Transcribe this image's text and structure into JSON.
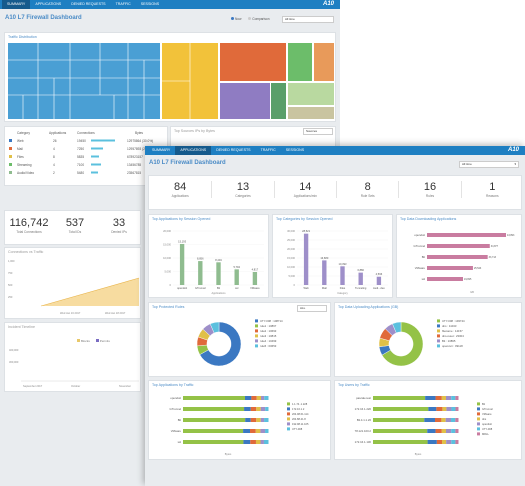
{
  "back": {
    "tabs": [
      "SUMMARY",
      "APPLICATIONS",
      "DENIED REQUESTS",
      "TRAFFIC",
      "SESSIONS"
    ],
    "logo": "A10",
    "title": "A10 L7 Firewall Dashboard",
    "toggle": {
      "now": "Now",
      "comparison": "Comparison",
      "select": "All time"
    },
    "traffic_distribution": "Traffic Distribution",
    "table": {
      "headers": [
        "Category",
        "Applications",
        "Connections",
        "Bytes"
      ],
      "rows": [
        [
          "Web",
          "26",
          "19450",
          "12975864 (30.0%)"
        ],
        [
          "Mail",
          "4",
          "7250",
          "12957893 (29.9%)"
        ],
        [
          "Files",
          "8",
          "5835",
          "678923157"
        ],
        [
          "Streaming",
          "4",
          "7100",
          "13456785"
        ],
        [
          "Audio/Video",
          "2",
          "5480",
          "23567815"
        ]
      ]
    },
    "top_sources_title": "Top Sources IPs by Bytes",
    "top_sources_select": "Sources",
    "stats": [
      {
        "v": "116,742",
        "l": "Total Connections"
      },
      {
        "v": "537",
        "l": "Total IDs"
      },
      {
        "v": "33",
        "l": "Denied IPs"
      }
    ],
    "connections_title": "Connections vs Traffic",
    "conn_ticks": [
      "1,000",
      "750",
      "500",
      "250"
    ],
    "conn_x": [
      "Wed Jan 16 2017",
      "Mon Jan 16 2017",
      "Wed Jan 18 2017"
    ],
    "incident_title": "Incident Timeline",
    "incident_legend": [
      "Blocks",
      "Permits"
    ],
    "incident_ticks": [
      "400,000",
      "300,000"
    ],
    "incident_x": [
      "September 2017",
      "October",
      "November"
    ]
  },
  "front": {
    "tabs": [
      "SUMMARY",
      "APPLICATIONS",
      "DENIED REQUESTS",
      "TRAFFIC",
      "SESSIONS"
    ],
    "logo": "A10",
    "title": "A10 L7 Firewall Dashboard",
    "select": "All time",
    "stats": [
      {
        "v": "84",
        "l": "Applications"
      },
      {
        "v": "13",
        "l": "Categories"
      },
      {
        "v": "14",
        "l": "Applications/min"
      },
      {
        "v": "8",
        "l": "Rule Sets"
      },
      {
        "v": "16",
        "l": "Rules"
      },
      {
        "v": "1",
        "l": "Reasons"
      }
    ],
    "colors": [
      "#8fbc8f",
      "#9e8fc9",
      "#c97ca0",
      "#94c247",
      "#e06a3a",
      "#3b78c2",
      "#e0c048"
    ],
    "chart_data": [
      {
        "type": "bar",
        "title": "Top Applications by Session Opened",
        "categories": [
          "opendoit",
          "GTrunnel",
          "Bit",
          "ssl",
          "VMware"
        ],
        "values": [
          15193,
          8856,
          8404,
          5794,
          4817
        ],
        "data_labels": [
          "15,193",
          "8,856",
          "8,404",
          "5,794",
          "4,817"
        ],
        "xlabel": "Applications",
        "ylim": [
          0,
          20000
        ],
        "yticks": [
          "20,000",
          "15,000",
          "10,000",
          "5,000",
          "0"
        ]
      },
      {
        "type": "bar",
        "title": "Top Categories by Session Opened",
        "categories": [
          "Web",
          "Mail",
          "Files",
          "Tunneling",
          "Audi...deo"
        ],
        "values": [
          28521,
          13680,
          10393,
          6880,
          4596
        ],
        "data_labels": [
          "28,521",
          "13,680",
          "10,393",
          "6,880",
          "4,596"
        ],
        "xlabel": "Category",
        "ylim": [
          0,
          30000
        ],
        "yticks": [
          "30,000",
          "25,000",
          "20,000",
          "15,000",
          "10,000",
          "5,000",
          "0"
        ]
      },
      {
        "type": "bar",
        "title": "Top Data Downloading Applications",
        "categories": [
          "opendoit",
          "GTrunnel",
          "Bit",
          "VMware",
          "ssl"
        ],
        "values": [
          43893,
          34877,
          33713,
          25523,
          19995
        ],
        "data_labels": [
          "43,893",
          "34,877",
          "33,713",
          "25,523",
          "19,995"
        ],
        "xlabel": "GB"
      },
      {
        "type": "pie",
        "title": "Top Protected Rules",
        "select": "ALL",
        "legend": [
          "UTY-008 : 108714",
          "rule1 : 10867",
          "rule2 : 10693",
          "rule3 : 10815",
          "rule4 : 10499",
          "rule5 : 00653"
        ],
        "values": [
          108714,
          10867,
          10693,
          10815,
          10499,
          653
        ]
      },
      {
        "type": "pie",
        "title": "Top Data Uploading Applications (GB)",
        "legend": [
          "UTY-008 : 193744",
          "dns : 11043",
          "filename : 14157",
          "dns-reset : 23004",
          "Bit : 13895",
          "opencuri : 09118"
        ],
        "values": [
          193744,
          11043,
          14157,
          23004,
          13895,
          9118
        ]
      },
      {
        "type": "bar",
        "title": "Top Applications by Traffic",
        "categories": [
          "opendoit",
          "GTrunnel",
          "Bit",
          "VMware",
          "ssl"
        ],
        "legend": [
          "1.1.74..1.228",
          "172.16.1.2",
          "204.98.61.114",
          "204.88.41.8",
          "192.98.11.105",
          "UTY-008"
        ],
        "xlabel": "Bytes",
        "series": [
          {
            "name": "1.1.74..1.228",
            "values": [
              58,
              55,
              56,
              52,
              53
            ]
          },
          {
            "name": "172.16.1.2",
            "values": [
              6,
              6,
              5,
              6,
              6
            ]
          },
          {
            "name": "204.98.61.114",
            "values": [
              5,
              5,
              5,
              5,
              5
            ]
          },
          {
            "name": "204.88.41.8",
            "values": [
              4,
              4,
              4,
              4,
              4
            ]
          },
          {
            "name": "192.98.11.105",
            "values": [
              3,
              4,
              3,
              4,
              3
            ]
          },
          {
            "name": "UTY-008",
            "values": [
              4,
              3,
              4,
              3,
              4
            ]
          }
        ]
      },
      {
        "type": "bar",
        "title": "Top Users by Traffic",
        "categories": [
          "pascale.test",
          "172.16.1.220",
          "Bit.4.1.1.20",
          "78.121.100.2",
          "172.16.1.130"
        ],
        "legend": [
          "Bit",
          "GTrunnel",
          "VMware",
          "dns",
          "opendoit",
          "UTY-008",
          "MRLL"
        ],
        "xlabel": "Bytes",
        "series": [
          {
            "name": "Bit",
            "values": [
              50,
              55,
              48,
              52,
              53
            ]
          },
          {
            "name": "GTrunnel",
            "values": [
              10,
              8,
              10,
              8,
              9
            ]
          },
          {
            "name": "VMware",
            "values": [
              6,
              6,
              6,
              6,
              5
            ]
          },
          {
            "name": "dns",
            "values": [
              4,
              4,
              4,
              4,
              4
            ]
          },
          {
            "name": "opendoit",
            "values": [
              5,
              5,
              5,
              5,
              5
            ]
          },
          {
            "name": "UTY-008",
            "values": [
              4,
              4,
              4,
              4,
              4
            ]
          },
          {
            "name": "MRLL",
            "values": [
              3,
              3,
              3,
              3,
              3
            ]
          }
        ]
      }
    ]
  }
}
